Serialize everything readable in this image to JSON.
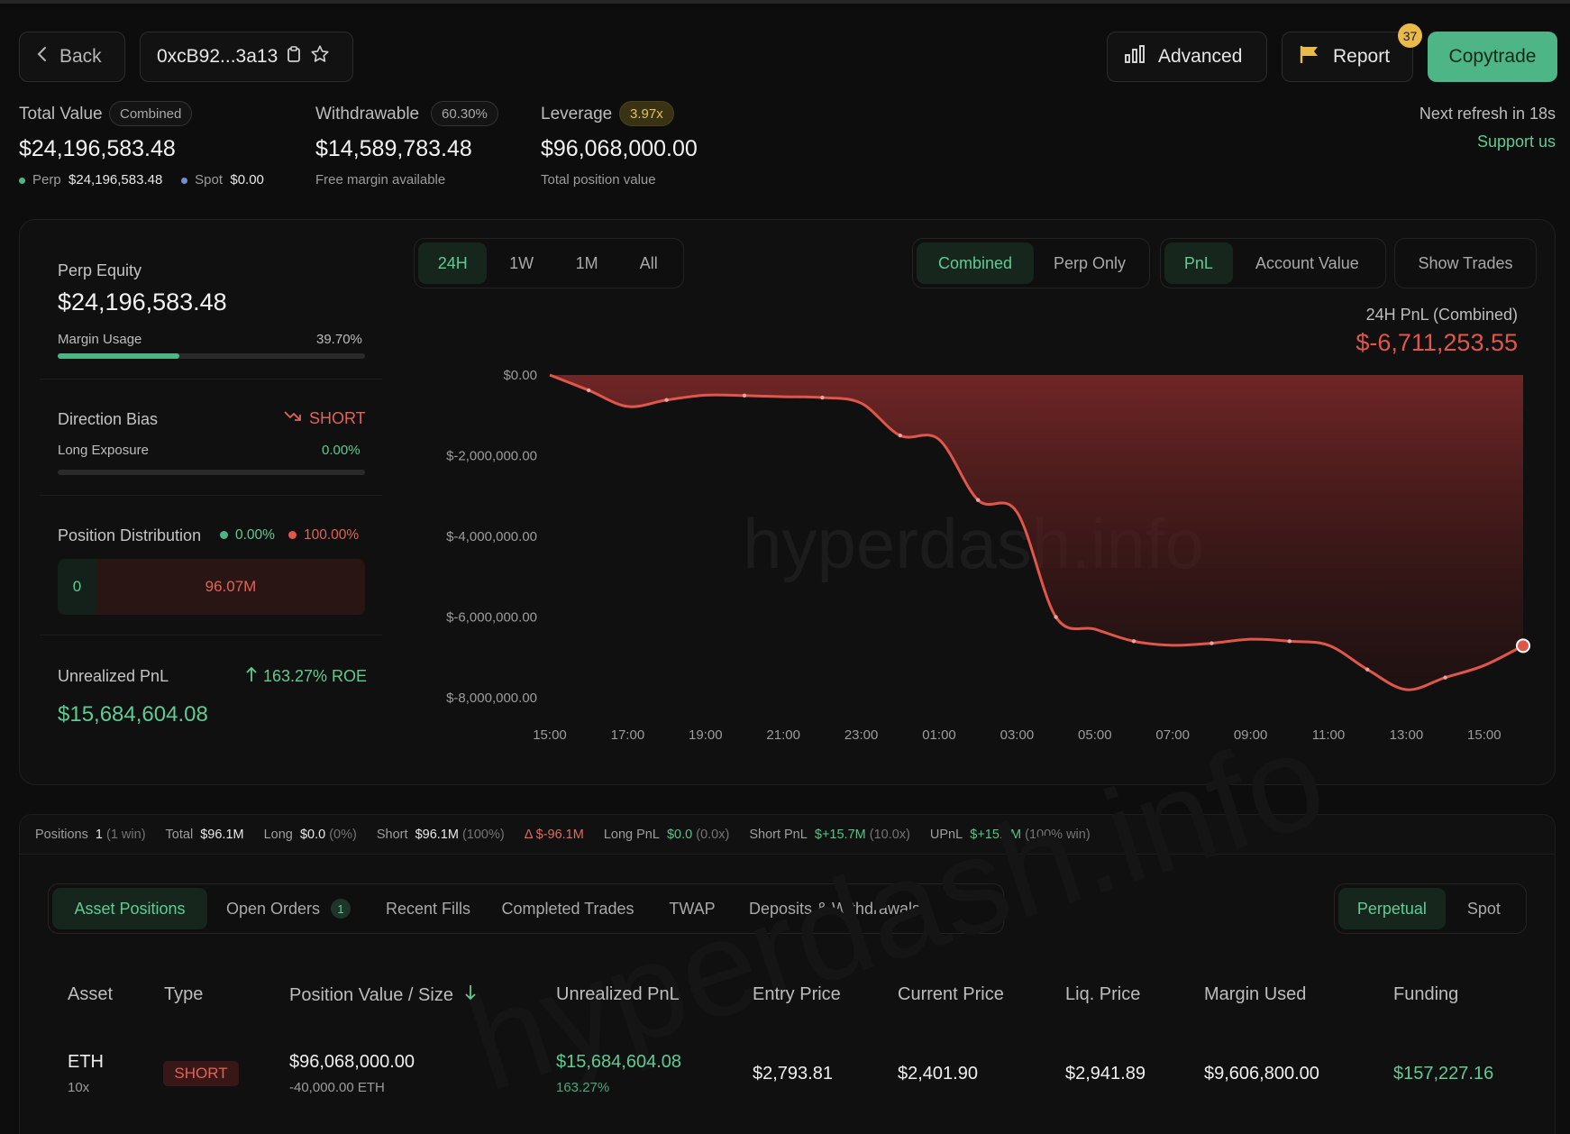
{
  "header": {
    "back_label": "Back",
    "address": "0xcB92...3a13",
    "advanced_label": "Advanced",
    "report_label": "Report",
    "report_badge": "37",
    "copytrade_label": "Copytrade",
    "next_refresh": "Next refresh in 18s",
    "support": "Support us"
  },
  "stats": {
    "total_value": {
      "label": "Total Value",
      "pill": "Combined",
      "value": "$24,196,583.48",
      "perp_label": "Perp",
      "perp_value": "$24,196,583.48",
      "spot_label": "Spot",
      "spot_value": "$0.00"
    },
    "withdrawable": {
      "label": "Withdrawable",
      "pill": "60.30%",
      "value": "$14,589,783.48",
      "sub": "Free margin available"
    },
    "leverage": {
      "label": "Leverage",
      "pill": "3.97x",
      "value": "$96,068,000.00",
      "sub": "Total position value"
    }
  },
  "left_panel": {
    "perp_equity_label": "Perp Equity",
    "perp_equity_value": "$24,196,583.48",
    "margin_usage_label": "Margin Usage",
    "margin_usage_value": "39.70%",
    "margin_usage_fraction": 0.397,
    "direction_bias_label": "Direction Bias",
    "direction_bias_value": "SHORT",
    "long_exposure_label": "Long Exposure",
    "long_exposure_value": "0.00%",
    "position_dist_label": "Position Distribution",
    "long_pct": "0.00%",
    "short_pct": "100.00%",
    "long_amount": "0",
    "short_amount": "96.07M",
    "upnl_label": "Unrealized PnL",
    "roe": "163.27% ROE",
    "upnl_value": "$15,684,604.08"
  },
  "chart_controls": {
    "ranges": [
      "24H",
      "1W",
      "1M",
      "All"
    ],
    "active_range": "24H",
    "modes": [
      "Combined",
      "Perp Only"
    ],
    "active_mode": "Combined",
    "metrics": [
      "PnL",
      "Account Value"
    ],
    "active_metric": "PnL",
    "show_trades": "Show Trades"
  },
  "chart_header": {
    "title": "24H PnL (Combined)",
    "value": "$-6,711,253.55"
  },
  "watermark": "hyperdash.info",
  "chart_data": {
    "type": "area",
    "x": [
      "15:00",
      "16:00",
      "17:00",
      "18:00",
      "19:00",
      "20:00",
      "21:00",
      "22:00",
      "23:00",
      "00:00",
      "01:00",
      "02:00",
      "03:00",
      "04:00",
      "05:00",
      "06:00",
      "07:00",
      "08:00",
      "09:00",
      "10:00",
      "11:00",
      "12:00",
      "13:00",
      "14:00",
      "15:00",
      "15:50"
    ],
    "y": [
      0,
      -380000,
      -780000,
      -620000,
      -500000,
      -510000,
      -540000,
      -560000,
      -700000,
      -1500000,
      -1600000,
      -3100000,
      -3400000,
      -6000000,
      -6300000,
      -6600000,
      -6700000,
      -6650000,
      -6550000,
      -6600000,
      -6700000,
      -7300000,
      -7800000,
      -7500000,
      -7200000,
      -6711253.55
    ],
    "x_ticks": [
      "15:00",
      "17:00",
      "19:00",
      "21:00",
      "23:00",
      "01:00",
      "03:00",
      "05:00",
      "07:00",
      "09:00",
      "11:00",
      "13:00",
      "15:00"
    ],
    "y_ticks": [
      "$0.00",
      "$-2,000,000.00",
      "$-4,000,000.00",
      "$-6,000,000.00",
      "$-8,000,000.00"
    ],
    "y_tick_values": [
      0,
      -2000000,
      -4000000,
      -6000000,
      -8000000
    ],
    "ylim": [
      -8000000,
      0
    ],
    "line_color": "#e0564b",
    "fill_color": "#6b2424",
    "grid": false
  },
  "summary": {
    "positions_label": "Positions",
    "positions": "1",
    "positions_note": "(1 win)",
    "total_label": "Total",
    "total": "$96.1M",
    "long_label": "Long",
    "long": "$0.0",
    "long_note": "(0%)",
    "short_label": "Short",
    "short": "$96.1M",
    "short_note": "(100%)",
    "delta": "Δ $-96.1M",
    "long_pnl_label": "Long PnL",
    "long_pnl": "$0.0",
    "long_pnl_note": "(0.0x)",
    "short_pnl_label": "Short PnL",
    "short_pnl": "$+15.7M",
    "short_pnl_note": "(10.0x)",
    "upnl_label": "UPnL",
    "upnl": "$+15.7M",
    "upnl_note": "(100% win)"
  },
  "tabs": {
    "items": [
      "Asset Positions",
      "Open Orders",
      "Recent Fills",
      "Completed Trades",
      "TWAP",
      "Deposits & Withdrawals"
    ],
    "open_orders_count": "1",
    "active": "Asset Positions",
    "market": [
      "Perpetual",
      "Spot"
    ],
    "active_market": "Perpetual"
  },
  "table": {
    "headers": [
      "Asset",
      "Type",
      "Position Value / Size",
      "Unrealized PnL",
      "Entry Price",
      "Current Price",
      "Liq. Price",
      "Margin Used",
      "Funding"
    ],
    "rows": [
      {
        "asset": "ETH",
        "leverage": "10x",
        "type": "SHORT",
        "position_value": "$96,068,000.00",
        "size": "-40,000.00 ETH",
        "upnl": "$15,684,604.08",
        "upnl_pct": "163.27%",
        "entry": "$2,793.81",
        "current": "$2,401.90",
        "liq": "$2,941.89",
        "margin": "$9,606,800.00",
        "funding": "$157,227.16"
      }
    ]
  },
  "colors": {
    "accent": "#4eb587",
    "negative": "#e0564b",
    "warning": "#e4c25a"
  }
}
